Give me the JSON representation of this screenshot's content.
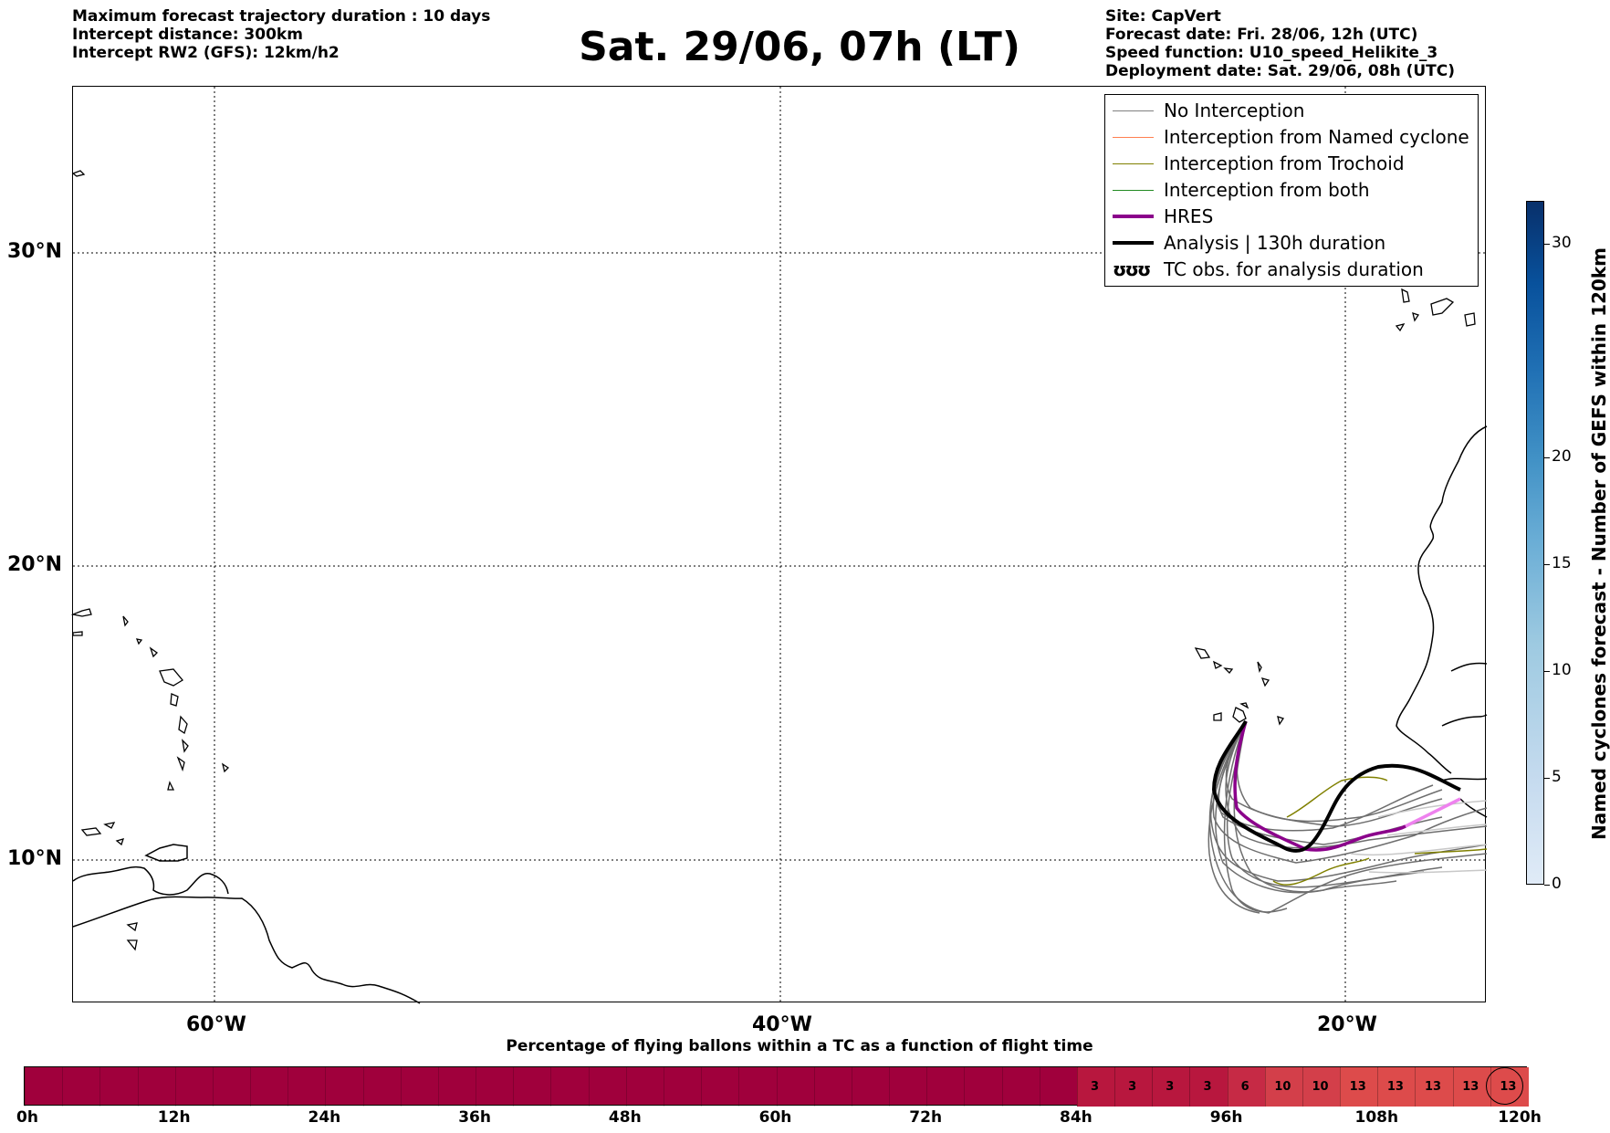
{
  "header": {
    "left": [
      "Maximum forecast trajectory duration : 10 days",
      "Intercept distance: 300km",
      "Intercept RW2 (GFS):  12km/h2"
    ],
    "title": "Sat. 29/06, 07h (LT)",
    "right": [
      "Site: CapVert",
      "Forecast date: Fri. 28/06, 12h (UTC)",
      "Speed function: U10_speed_Helikite_3",
      "Deployment date: Sat. 29/06, 08h (UTC)"
    ]
  },
  "map": {
    "lat_labels": [
      "30°N",
      "20°N",
      "10°N"
    ],
    "lon_labels": [
      "60°W",
      "40°W",
      "20°W"
    ],
    "legend": [
      {
        "label": "No Interception",
        "color": "#808080",
        "style": "thin"
      },
      {
        "label": "Interception from Named cyclone",
        "color": "#ff7f50",
        "style": "thin"
      },
      {
        "label": "Interception from Trochoid",
        "color": "#808000",
        "style": "thin"
      },
      {
        "label": "Interception from both",
        "color": "#228b22",
        "style": "thin"
      },
      {
        "label": "HRES",
        "color": "#8b008b",
        "style": "thick"
      },
      {
        "label": "Analysis | 130h duration",
        "color": "#000000",
        "style": "thick"
      },
      {
        "label": "TC obs. for analysis duration",
        "color": "#000000",
        "style": "symbol",
        "symbol": "ʊʊʊ"
      }
    ],
    "colors": {
      "coast": "#000000",
      "grid": "#000000",
      "ensemble": "#6e6e6e",
      "ensemble_light": "#c8c8c8",
      "hres": "#8b008b",
      "hres_light": "#ee82ee",
      "analysis": "#000000",
      "trochoid": "#808000"
    }
  },
  "colorbar": {
    "label": "Named cyclones forecast - Number of GEFS within 120km",
    "ticks": [
      "0",
      "5",
      "10",
      "15",
      "20",
      "30"
    ],
    "tick_values": [
      0,
      5,
      10,
      15,
      20,
      30
    ],
    "max": 32,
    "colors": [
      "#e0ebf7",
      "#08306b"
    ]
  },
  "timeline": {
    "title": "Percentage of flying ballons within a TC as a function of flight time",
    "ticks": [
      "0h",
      "12h",
      "24h",
      "36h",
      "48h",
      "60h",
      "72h",
      "84h",
      "96h",
      "108h",
      "120h"
    ],
    "hours_per_cell": 3,
    "base_color": "#a0003c",
    "cells_start_hour": 84,
    "values": [
      3,
      3,
      3,
      3,
      6,
      10,
      10,
      13,
      13,
      13,
      13,
      13
    ],
    "value_colors": {
      "3": "#b8173e",
      "6": "#c62a45",
      "10": "#d33f4a",
      "13": "#dd4b4b"
    },
    "circled_index": 11
  }
}
